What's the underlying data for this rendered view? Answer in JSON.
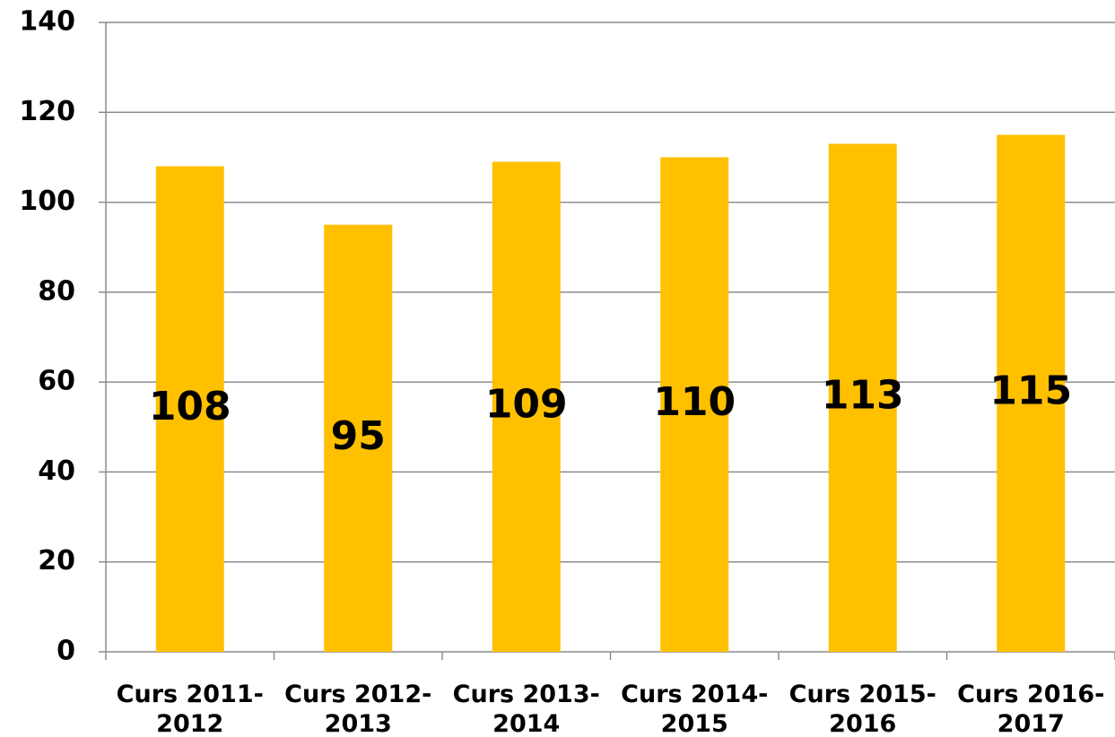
{
  "chart_data": {
    "type": "bar",
    "categories": [
      "Curs 2011-2012",
      "Curs 2012-2013",
      "Curs 2013-2014",
      "Curs 2014-2015",
      "Curs 2015-2016",
      "Curs 2016-2017"
    ],
    "values": [
      108,
      95,
      109,
      110,
      113,
      115
    ],
    "color": "#ffc000",
    "ylim": [
      0,
      140
    ],
    "yticks": [
      0,
      20,
      40,
      60,
      80,
      100,
      120,
      140
    ],
    "grid": true
  }
}
